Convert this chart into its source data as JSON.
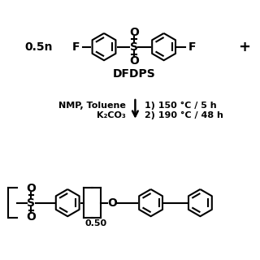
{
  "bg_color": "#ffffff",
  "line_color": "#000000",
  "text_color": "#000000",
  "lw": 1.5,
  "fig_w": 3.2,
  "fig_h": 3.2,
  "dpi": 100,
  "xmin": 0,
  "xmax": 10,
  "ymin": 0,
  "ymax": 10,
  "ring_r": 0.52,
  "top_y": 8.2,
  "mid_y": 5.8,
  "bot_y": 2.2,
  "coeff_label": "0.5n",
  "F_label": "F",
  "S_label": "S",
  "O_label": "O",
  "dfdps_label": "DFDPS",
  "plus_label": "+",
  "reagents1": "NMP, Toluene",
  "reagents2": "K₂CO₃",
  "cond1": "1) 150 °C / 5 h",
  "cond2": "2) 190 °C / 48 h",
  "subscript": "0.50"
}
